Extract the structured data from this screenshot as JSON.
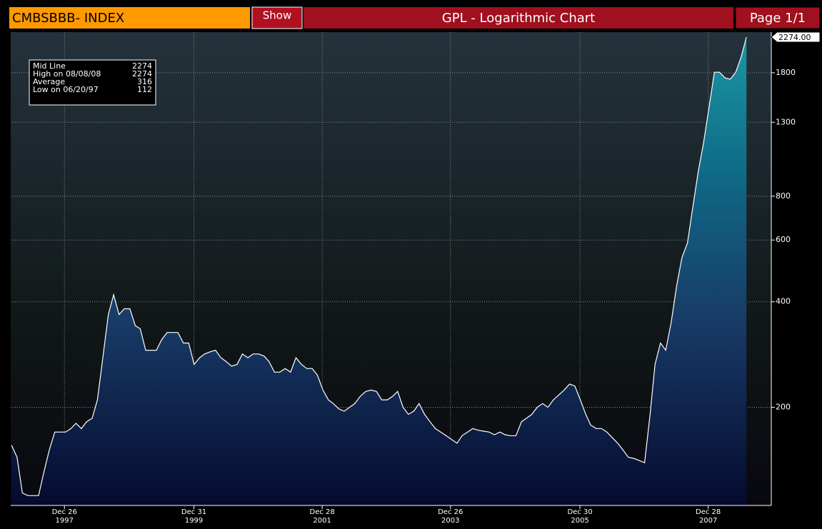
{
  "header": {
    "ticker": "CMBSBBB- INDEX",
    "button": "Show",
    "title": "GPL - Logarithmic Chart",
    "page": "Page 1/1"
  },
  "chart_data": {
    "type": "area",
    "log_scale": true,
    "grid": true,
    "line_color": "#ffffff",
    "x": [
      "1997-03",
      "1997-04",
      "1997-05",
      "1997-06",
      "1997-07",
      "1997-08",
      "1997-09",
      "1997-10",
      "1997-11",
      "1997-12",
      "1998-01",
      "1998-02",
      "1998-03",
      "1998-04",
      "1998-05",
      "1998-06",
      "1998-07",
      "1998-08",
      "1998-09",
      "1998-10",
      "1998-11",
      "1998-12",
      "1999-01",
      "1999-02",
      "1999-03",
      "1999-04",
      "1999-05",
      "1999-06",
      "1999-07",
      "1999-08",
      "1999-09",
      "1999-10",
      "1999-11",
      "1999-12",
      "2000-01",
      "2000-02",
      "2000-03",
      "2000-04",
      "2000-05",
      "2000-06",
      "2000-07",
      "2000-08",
      "2000-09",
      "2000-10",
      "2000-11",
      "2000-12",
      "2001-01",
      "2001-02",
      "2001-03",
      "2001-04",
      "2001-05",
      "2001-06",
      "2001-07",
      "2001-08",
      "2001-09",
      "2001-10",
      "2001-11",
      "2001-12",
      "2002-01",
      "2002-02",
      "2002-03",
      "2002-04",
      "2002-05",
      "2002-06",
      "2002-07",
      "2002-08",
      "2002-09",
      "2002-10",
      "2002-11",
      "2002-12",
      "2003-01",
      "2003-02",
      "2003-03",
      "2003-04",
      "2003-05",
      "2003-06",
      "2003-07",
      "2003-08",
      "2003-09",
      "2003-10",
      "2003-11",
      "2003-12",
      "2004-01",
      "2004-02",
      "2004-03",
      "2004-04",
      "2004-05",
      "2004-06",
      "2004-07",
      "2004-08",
      "2004-09",
      "2004-10",
      "2004-11",
      "2004-12",
      "2005-01",
      "2005-02",
      "2005-03",
      "2005-04",
      "2005-05",
      "2005-06",
      "2005-07",
      "2005-08",
      "2005-09",
      "2005-10",
      "2005-11",
      "2005-12",
      "2006-01",
      "2006-02",
      "2006-03",
      "2006-04",
      "2006-05",
      "2006-06",
      "2006-07",
      "2006-08",
      "2006-09",
      "2006-10",
      "2006-11",
      "2006-12",
      "2007-01",
      "2007-02",
      "2007-03",
      "2007-04",
      "2007-05",
      "2007-06",
      "2007-07",
      "2007-08",
      "2007-09",
      "2007-10",
      "2007-11",
      "2007-12",
      "2008-01",
      "2008-02",
      "2008-03",
      "2008-04",
      "2008-05",
      "2008-06",
      "2008-07",
      "2008-08"
    ],
    "values": [
      156,
      144,
      114,
      112,
      112,
      112,
      131,
      151,
      170,
      170,
      170,
      174,
      180,
      174,
      182,
      186,
      210,
      277,
      368,
      419,
      368,
      382,
      382,
      342,
      335,
      291,
      291,
      291,
      312,
      327,
      327,
      327,
      305,
      305,
      265,
      277,
      284,
      288,
      291,
      277,
      270,
      262,
      265,
      284,
      277,
      284,
      284,
      280,
      270,
      252,
      252,
      258,
      252,
      277,
      265,
      258,
      258,
      247,
      224,
      210,
      205,
      198,
      195,
      200,
      205,
      215,
      222,
      224,
      222,
      210,
      210,
      215,
      222,
      200,
      191,
      195,
      205,
      191,
      182,
      174,
      170,
      166,
      162,
      158,
      166,
      170,
      174,
      172,
      171,
      170,
      167,
      170,
      167,
      166,
      166,
      182,
      186,
      191,
      200,
      205,
      200,
      210,
      217,
      224,
      233,
      230,
      210,
      191,
      178,
      174,
      174,
      170,
      164,
      158,
      151,
      144,
      143,
      141,
      139,
      191,
      265,
      305,
      291,
      350,
      442,
      535,
      588,
      742,
      938,
      1131,
      1428,
      1806,
      1806,
      1741,
      1725,
      1806,
      1990,
      2274
    ],
    "last_label": "2274.00",
    "xlim": [
      "1997-02-24",
      "2008-12-20"
    ],
    "xticks": [
      {
        "value": "1997-12-26",
        "label": "Dec 26\n1997"
      },
      {
        "value": "1999-12-31",
        "label": "Dec 31\n1999"
      },
      {
        "value": "2001-12-28",
        "label": "Dec 28\n2001"
      },
      {
        "value": "2003-12-26",
        "label": "Dec 26\n2003"
      },
      {
        "value": "2005-12-30",
        "label": "Dec 30\n2005"
      },
      {
        "value": "2007-12-28",
        "label": "Dec 28\n2007"
      }
    ],
    "ylim": [
      105,
      2350
    ],
    "yticks": [
      200,
      400,
      600,
      800,
      1300,
      1800
    ],
    "stats": [
      {
        "label": "Mid Line",
        "value": 2274
      },
      {
        "label": "High on 08/08/08",
        "value": 2274
      },
      {
        "label": "Average",
        "value": 316
      },
      {
        "label": "Low on 06/20/97",
        "value": 112
      }
    ]
  }
}
